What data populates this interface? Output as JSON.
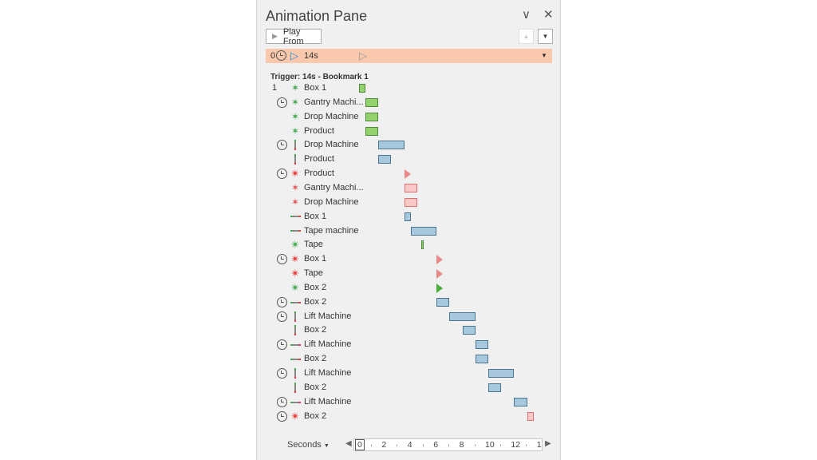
{
  "pane": {
    "title": "Animation Pane",
    "collapse_icon": "chevron-down-icon",
    "close_icon": "close-icon",
    "play_from_label": "Play From",
    "move_up_icon": "triangle-up-icon",
    "move_down_icon": "triangle-down-icon"
  },
  "selected": {
    "index": "0",
    "label": "14s",
    "dropdown_icon": "triangle-down-icon"
  },
  "trigger_label": "Trigger: 14s - Bookmark 1",
  "colors": {
    "selected_row": "#fac9ad",
    "motion_bar": "#a7c7dc",
    "entrance_bar": "#92d36e",
    "exit_bar": "#fbc8c8"
  },
  "items": [
    {
      "num": "1",
      "clock": false,
      "effect": "entrance",
      "label": "Box 1",
      "start": 0,
      "end": 0.5
    },
    {
      "clock": true,
      "effect": "entrance",
      "label": "Gantry Machi...",
      "start": 0.5,
      "end": 1.5
    },
    {
      "clock": false,
      "effect": "entrance",
      "label": "Drop Machine",
      "start": 0.5,
      "end": 1.5
    },
    {
      "clock": false,
      "effect": "entrance",
      "label": "Product",
      "start": 0.5,
      "end": 1.5
    },
    {
      "clock": true,
      "effect": "motion-vertical",
      "label": "Drop Machine",
      "start": 1.5,
      "end": 3.5
    },
    {
      "clock": false,
      "effect": "motion-vertical",
      "label": "Product",
      "start": 1.5,
      "end": 2.5
    },
    {
      "clock": true,
      "effect": "emphasis-red",
      "label": "Product",
      "start": 3.5,
      "marker": "pink"
    },
    {
      "clock": false,
      "effect": "exit",
      "label": "Gantry Machi...",
      "start": 3.5,
      "end": 4.5
    },
    {
      "clock": false,
      "effect": "exit",
      "label": "Drop Machine",
      "start": 3.5,
      "end": 4.5
    },
    {
      "clock": false,
      "effect": "motion-horizontal",
      "label": "Box 1",
      "start": 3.5,
      "end": 4
    },
    {
      "clock": false,
      "effect": "motion-horizontal",
      "label": "Tape machine",
      "start": 4,
      "end": 6
    },
    {
      "clock": false,
      "effect": "emphasis-green",
      "label": "Tape",
      "start": 4.8,
      "end": 5
    },
    {
      "clock": true,
      "effect": "emphasis-red",
      "label": "Box 1",
      "start": 6,
      "marker": "pink"
    },
    {
      "clock": false,
      "effect": "emphasis-red",
      "label": "Tape",
      "start": 6,
      "marker": "pink"
    },
    {
      "clock": false,
      "effect": "emphasis-green",
      "label": "Box 2",
      "start": 6,
      "marker": "green"
    },
    {
      "clock": true,
      "effect": "motion-horizontal",
      "label": "Box 2",
      "start": 6,
      "end": 7
    },
    {
      "clock": true,
      "effect": "motion-vertical",
      "label": "Lift Machine",
      "start": 7,
      "end": 9
    },
    {
      "clock": false,
      "effect": "motion-vertical",
      "label": "Box 2",
      "start": 8,
      "end": 9
    },
    {
      "clock": true,
      "effect": "motion-horizontal",
      "label": "Lift Machine",
      "start": 9,
      "end": 10
    },
    {
      "clock": false,
      "effect": "motion-horizontal",
      "label": "Box 2",
      "start": 9,
      "end": 10
    },
    {
      "clock": true,
      "effect": "motion-vertical",
      "label": "Lift Machine",
      "start": 10,
      "end": 12
    },
    {
      "clock": false,
      "effect": "motion-vertical",
      "label": "Box 2",
      "start": 10,
      "end": 11
    },
    {
      "clock": true,
      "effect": "motion-horizontal",
      "label": "Lift Machine",
      "start": 12,
      "end": 13
    },
    {
      "clock": true,
      "effect": "emphasis-red",
      "label": "Box 2",
      "start": 13,
      "end": 13.5,
      "bar": "exit"
    }
  ],
  "footer": {
    "units_label": "Seconds",
    "ticks": [
      "0",
      "2",
      "4",
      "6",
      "8",
      "10",
      "12",
      "1"
    ]
  }
}
